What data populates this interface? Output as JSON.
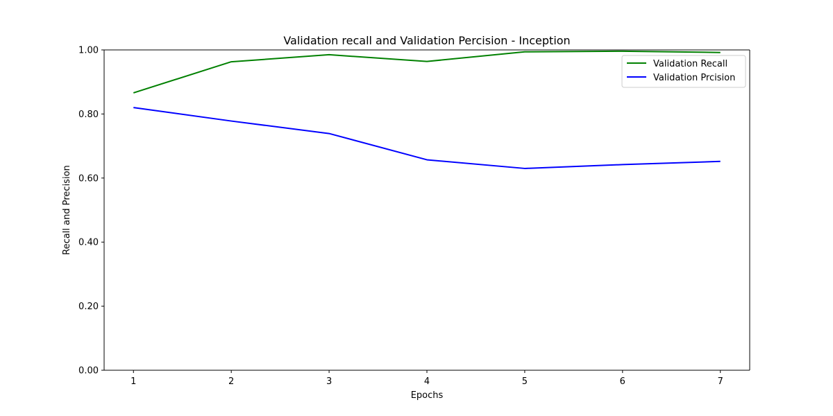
{
  "chart_data": {
    "type": "line",
    "title": "Validation recall and Validation Percision - Inception",
    "xlabel": "Epochs",
    "ylabel": "Recall and Precision",
    "x": [
      1,
      2,
      3,
      4,
      5,
      6,
      7
    ],
    "xlim": [
      0.7,
      7.3
    ],
    "ylim": [
      0.0,
      1.0
    ],
    "yticks": [
      "0.00",
      "0.20",
      "0.40",
      "0.60",
      "0.80",
      "1.00"
    ],
    "xticks": [
      "1",
      "2",
      "3",
      "4",
      "5",
      "6",
      "7"
    ],
    "grid": false,
    "legend_position": "upper right",
    "series": [
      {
        "name": "Validation Recall",
        "color": "#008000",
        "values": [
          0.866,
          0.963,
          0.985,
          0.964,
          0.994,
          0.996,
          0.992
        ]
      },
      {
        "name": "Validation Prcision",
        "color": "#0000ff",
        "values": [
          0.82,
          0.778,
          0.739,
          0.657,
          0.63,
          0.642,
          0.652
        ]
      }
    ]
  }
}
